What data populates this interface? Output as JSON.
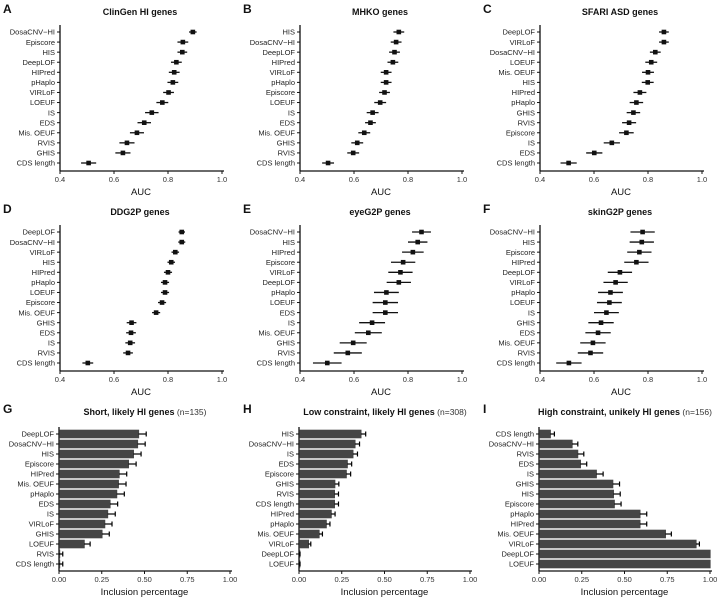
{
  "colors": {
    "marker": "#111111",
    "bar": "#454545",
    "axis": "#111111"
  },
  "chart_data": [
    {
      "type": "scatter",
      "letter": "A",
      "title": "ClinGen HI genes",
      "xlabel": "AUC",
      "xlim": [
        0.4,
        1.0
      ],
      "xticks": [
        "0.4",
        "0.6",
        "0.8",
        "1.0"
      ],
      "categories": [
        "DosaCNV−HI",
        "Episcore",
        "HIS",
        "DeepLOF",
        "HIPred",
        "pHaplo",
        "VIRLoF",
        "LOEUF",
        "IS",
        "EDS",
        "Mis. OEUF",
        "RVIS",
        "GHIS",
        "CDS length"
      ],
      "values": [
        0.892,
        0.855,
        0.853,
        0.831,
        0.823,
        0.818,
        0.802,
        0.779,
        0.74,
        0.712,
        0.685,
        0.648,
        0.633,
        0.506
      ],
      "errors": [
        0.014,
        0.02,
        0.018,
        0.02,
        0.02,
        0.02,
        0.02,
        0.022,
        0.025,
        0.025,
        0.026,
        0.028,
        0.028,
        0.028
      ]
    },
    {
      "type": "scatter",
      "letter": "B",
      "title": "MHKO genes",
      "xlabel": "AUC",
      "xlim": [
        0.4,
        1.0
      ],
      "xticks": [
        "0.4",
        "0.6",
        "0.8",
        "1.0"
      ],
      "categories": [
        "HIS",
        "DosaCNV−HI",
        "DeepLOF",
        "HIPred",
        "VIRLoF",
        "pHaplo",
        "Episcore",
        "LOEUF",
        "IS",
        "EDS",
        "Mis. OEUF",
        "GHIS",
        "RVIS",
        "CDS length"
      ],
      "values": [
        0.766,
        0.756,
        0.75,
        0.744,
        0.719,
        0.719,
        0.713,
        0.697,
        0.669,
        0.661,
        0.638,
        0.612,
        0.597,
        0.504
      ],
      "errors": [
        0.02,
        0.02,
        0.02,
        0.02,
        0.02,
        0.02,
        0.02,
        0.022,
        0.022,
        0.02,
        0.022,
        0.022,
        0.022,
        0.022
      ]
    },
    {
      "type": "scatter",
      "letter": "C",
      "title": "SFARI ASD genes",
      "xlabel": "AUC",
      "xlim": [
        0.4,
        1.0
      ],
      "xticks": [
        "0.4",
        "0.6",
        "0.8",
        "1.0"
      ],
      "categories": [
        "DeepLOF",
        "VIRLoF",
        "DosaCNV−HI",
        "LOEUF",
        "Mis. OEUF",
        "HIS",
        "HIPred",
        "pHaplo",
        "GHIS",
        "RVIS",
        "Episcore",
        "IS",
        "EDS",
        "CDS length"
      ],
      "values": [
        0.859,
        0.859,
        0.827,
        0.812,
        0.8,
        0.799,
        0.77,
        0.757,
        0.746,
        0.73,
        0.72,
        0.666,
        0.601,
        0.506
      ],
      "errors": [
        0.018,
        0.018,
        0.02,
        0.022,
        0.022,
        0.022,
        0.024,
        0.025,
        0.025,
        0.026,
        0.027,
        0.03,
        0.03,
        0.03
      ]
    },
    {
      "type": "scatter",
      "letter": "D",
      "title": "DDG2P genes",
      "xlabel": "AUC",
      "xlim": [
        0.4,
        1.0
      ],
      "xticks": [
        "0.4",
        "0.6",
        "0.8",
        "1.0"
      ],
      "categories": [
        "DeepLOF",
        "DosaCNV−HI",
        "VIRLoF",
        "HIS",
        "HIPred",
        "pHaplo",
        "LOEUF",
        "Episcore",
        "Mis. OEUF",
        "GHIS",
        "EDS",
        "IS",
        "RVIS",
        "CDS length"
      ],
      "values": [
        0.851,
        0.851,
        0.827,
        0.812,
        0.8,
        0.789,
        0.789,
        0.778,
        0.756,
        0.665,
        0.663,
        0.66,
        0.652,
        0.503
      ],
      "errors": [
        0.012,
        0.013,
        0.014,
        0.014,
        0.015,
        0.015,
        0.015,
        0.015,
        0.015,
        0.018,
        0.018,
        0.018,
        0.018,
        0.02
      ]
    },
    {
      "type": "scatter",
      "letter": "E",
      "title": "eyeG2P genes",
      "xlabel": "AUC",
      "xlim": [
        0.4,
        1.0
      ],
      "xticks": [
        "0.4",
        "0.6",
        "0.8",
        "1.0"
      ],
      "categories": [
        "DosaCNV−HI",
        "HIS",
        "HIPred",
        "Episcore",
        "VIRLoF",
        "DeepLOF",
        "pHaplo",
        "LOEUF",
        "EDS",
        "IS",
        "Mis. OEUF",
        "GHIS",
        "RVIS",
        "CDS length"
      ],
      "values": [
        0.85,
        0.836,
        0.818,
        0.782,
        0.772,
        0.766,
        0.72,
        0.716,
        0.716,
        0.667,
        0.653,
        0.597,
        0.577,
        0.501
      ],
      "errors": [
        0.035,
        0.036,
        0.04,
        0.045,
        0.045,
        0.045,
        0.046,
        0.047,
        0.047,
        0.048,
        0.05,
        0.05,
        0.052,
        0.053
      ]
    },
    {
      "type": "scatter",
      "letter": "F",
      "title": "skinG2P genes",
      "xlabel": "AUC",
      "xlim": [
        0.4,
        1.0
      ],
      "xticks": [
        "0.4",
        "0.6",
        "0.8",
        "1.0"
      ],
      "categories": [
        "DosaCNV−HI",
        "HIS",
        "Episcore",
        "HIPred",
        "DeepLOF",
        "VIRLoF",
        "pHaplo",
        "LOEUF",
        "IS",
        "GHIS",
        "EDS",
        "Mis. OEUF",
        "RVIS",
        "CDS length"
      ],
      "values": [
        0.78,
        0.777,
        0.768,
        0.757,
        0.696,
        0.68,
        0.661,
        0.657,
        0.646,
        0.626,
        0.615,
        0.596,
        0.587,
        0.507
      ],
      "errors": [
        0.045,
        0.045,
        0.045,
        0.045,
        0.045,
        0.045,
        0.046,
        0.046,
        0.046,
        0.047,
        0.047,
        0.047,
        0.047,
        0.047
      ]
    },
    {
      "type": "bar",
      "letter": "G",
      "title": "Short, likely HI genes",
      "title_n": "(n=135)",
      "xlabel": "Inclusion percentage",
      "xlim": [
        0,
        1
      ],
      "xticks": [
        "0.00",
        "0.25",
        "0.50",
        "0.75",
        "1.00"
      ],
      "categories": [
        "DeepLOF",
        "DosaCNV−HI",
        "HIS",
        "Episcore",
        "HIPred",
        "Mis. OEUF",
        "pHaplo",
        "EDS",
        "IS",
        "VIRLoF",
        "GHIS",
        "LOEUF",
        "RVIS",
        "CDS length"
      ],
      "values": [
        0.465,
        0.459,
        0.435,
        0.406,
        0.351,
        0.347,
        0.337,
        0.298,
        0.284,
        0.267,
        0.251,
        0.147,
        0.0,
        0.0
      ],
      "errors": [
        0.045,
        0.045,
        0.045,
        0.045,
        0.045,
        0.045,
        0.045,
        0.045,
        0.045,
        0.043,
        0.043,
        0.035,
        0.022,
        0.022
      ]
    },
    {
      "type": "bar",
      "letter": "H",
      "title": "Low constraint, likely HI genes",
      "title_n": "(n=308)",
      "xlabel": "Inclusion percentage",
      "xlim": [
        0,
        1
      ],
      "xticks": [
        "0.00",
        "0.25",
        "0.50",
        "0.75",
        "1.00"
      ],
      "categories": [
        "HIS",
        "DosaCNV−HI",
        "IS",
        "EDS",
        "Episcore",
        "GHIS",
        "RVIS",
        "CDS length",
        "HIPred",
        "pHaplo",
        "Mis. OEUF",
        "VIRLoF",
        "DeepLOF",
        "LOEUF"
      ],
      "values": [
        0.362,
        0.327,
        0.315,
        0.282,
        0.276,
        0.209,
        0.207,
        0.207,
        0.188,
        0.159,
        0.117,
        0.055,
        0.003,
        0.003
      ],
      "errors": [
        0.028,
        0.027,
        0.027,
        0.026,
        0.026,
        0.024,
        0.024,
        0.024,
        0.023,
        0.022,
        0.02,
        0.014,
        0.003,
        0.003
      ]
    },
    {
      "type": "bar",
      "letter": "I",
      "title": "High constraint, unikely HI genes",
      "title_n": "(n=156)",
      "xlabel": "Inclusion percentage",
      "xlim": [
        0,
        1
      ],
      "xticks": [
        "0.00",
        "0.25",
        "0.50",
        "0.75",
        "1.00"
      ],
      "categories": [
        "CDS length",
        "DosaCNV−HI",
        "RVIS",
        "EDS",
        "IS",
        "GHIS",
        "HIS",
        "Episcore",
        "pHaplo",
        "HIPred",
        "Mis. OEUF",
        "VIRLoF",
        "DeepLOF",
        "LOEUF"
      ],
      "values": [
        0.066,
        0.193,
        0.226,
        0.242,
        0.335,
        0.431,
        0.435,
        0.44,
        0.59,
        0.59,
        0.739,
        0.918,
        1.0,
        1.0
      ],
      "errors": [
        0.024,
        0.034,
        0.036,
        0.037,
        0.04,
        0.04,
        0.04,
        0.04,
        0.04,
        0.04,
        0.035,
        0.02,
        0,
        0
      ]
    }
  ]
}
